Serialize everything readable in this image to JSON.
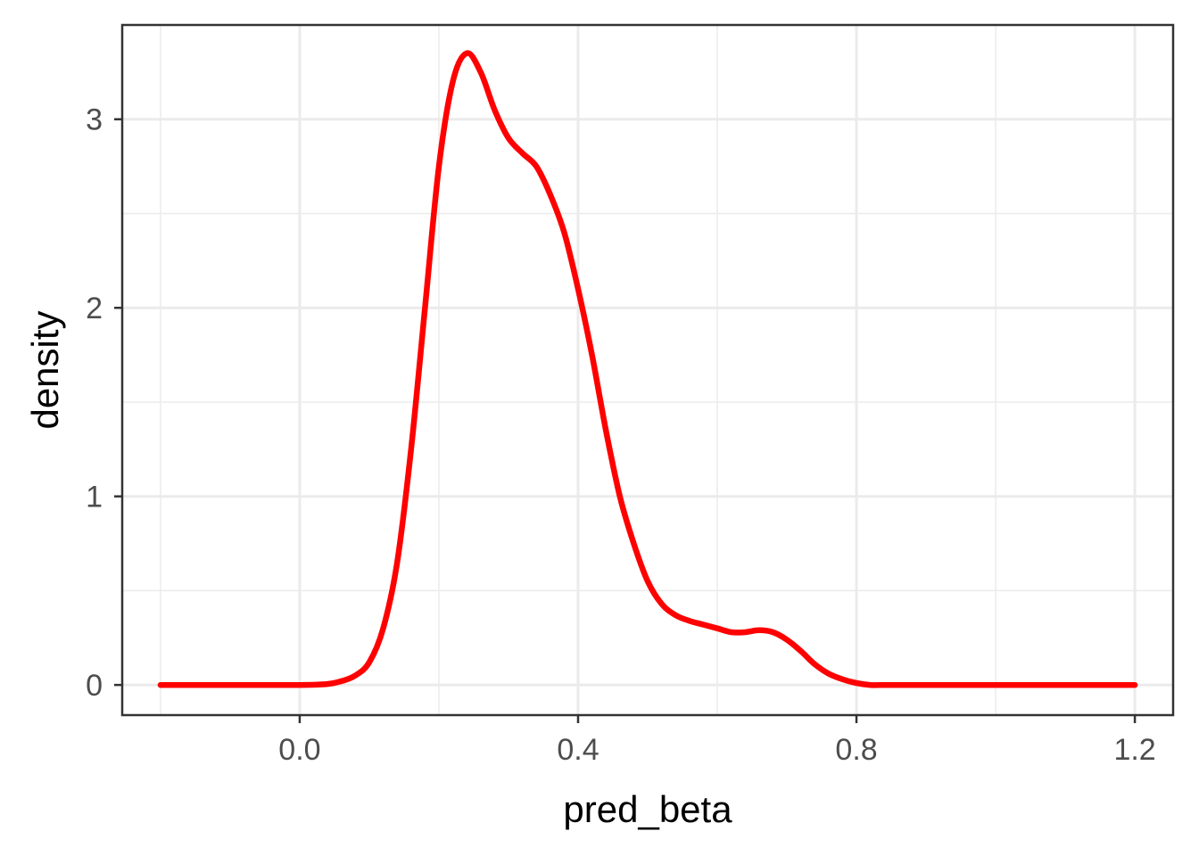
{
  "chart_data": {
    "type": "line",
    "title": "",
    "xlabel": "pred_beta",
    "ylabel": "density",
    "xlim": [
      -0.255,
      1.255
    ],
    "ylim": [
      -0.16,
      3.5
    ],
    "x_ticks": [
      0.0,
      0.4,
      0.8,
      1.2
    ],
    "x_tick_labels": [
      "0.0",
      "0.4",
      "0.8",
      "1.2"
    ],
    "x_minor_ticks": [
      -0.2,
      0.2,
      0.6,
      1.0
    ],
    "y_ticks": [
      0,
      1,
      2,
      3
    ],
    "y_tick_labels": [
      "0",
      "1",
      "2",
      "3"
    ],
    "y_minor_ticks": [
      0.5,
      1.5,
      2.5
    ],
    "grid": true,
    "legend": "none",
    "series": [
      {
        "color": "#ff0000",
        "x": [
          -0.2,
          -0.1,
          0.0,
          0.04,
          0.06,
          0.08,
          0.1,
          0.12,
          0.14,
          0.16,
          0.18,
          0.2,
          0.22,
          0.24,
          0.26,
          0.28,
          0.3,
          0.32,
          0.34,
          0.36,
          0.38,
          0.4,
          0.42,
          0.44,
          0.46,
          0.48,
          0.5,
          0.52,
          0.54,
          0.56,
          0.58,
          0.6,
          0.62,
          0.64,
          0.66,
          0.68,
          0.7,
          0.72,
          0.74,
          0.76,
          0.78,
          0.8,
          0.82,
          0.84,
          0.86,
          0.88,
          0.9,
          0.92,
          0.94,
          1.0,
          1.1,
          1.2
        ],
        "y": [
          0.0,
          0.0,
          0.0,
          0.005,
          0.02,
          0.05,
          0.12,
          0.3,
          0.65,
          1.25,
          2.0,
          2.75,
          3.2,
          3.35,
          3.25,
          3.05,
          2.9,
          2.82,
          2.75,
          2.6,
          2.4,
          2.1,
          1.75,
          1.35,
          1.0,
          0.75,
          0.55,
          0.43,
          0.37,
          0.34,
          0.32,
          0.3,
          0.28,
          0.28,
          0.29,
          0.28,
          0.24,
          0.18,
          0.11,
          0.06,
          0.03,
          0.01,
          0.0,
          0.0,
          0.0,
          0.0,
          0.0,
          0.0,
          0.0,
          0.0,
          0.0,
          0.0
        ]
      }
    ]
  }
}
